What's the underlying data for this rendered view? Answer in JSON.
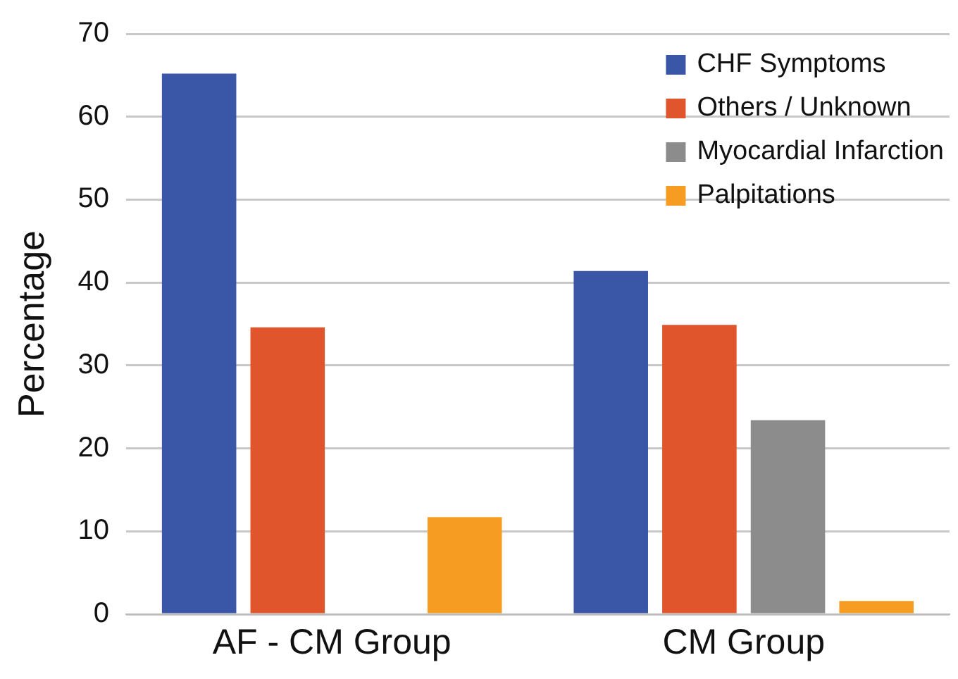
{
  "chart_data": {
    "type": "bar",
    "ylabel": "Percentage",
    "categories": [
      "AF - CM Group",
      "CM Group"
    ],
    "series": [
      {
        "name": "CHF Symptoms",
        "color": "#3a57a7",
        "values": [
          65.2,
          41.4
        ]
      },
      {
        "name": "Others / Unknown",
        "color": "#e0552b",
        "values": [
          34.6,
          34.9
        ]
      },
      {
        "name": "Myocardial Infarction",
        "color": "#8c8c8c",
        "values": [
          0,
          23.4
        ]
      },
      {
        "name": "Palpitations",
        "color": "#f69c23",
        "values": [
          11.7,
          1.6
        ]
      }
    ],
    "ylim": [
      0,
      70
    ],
    "yticks": [
      0,
      10,
      20,
      30,
      40,
      50,
      60,
      70
    ],
    "grid": "y",
    "legend": "top right"
  }
}
